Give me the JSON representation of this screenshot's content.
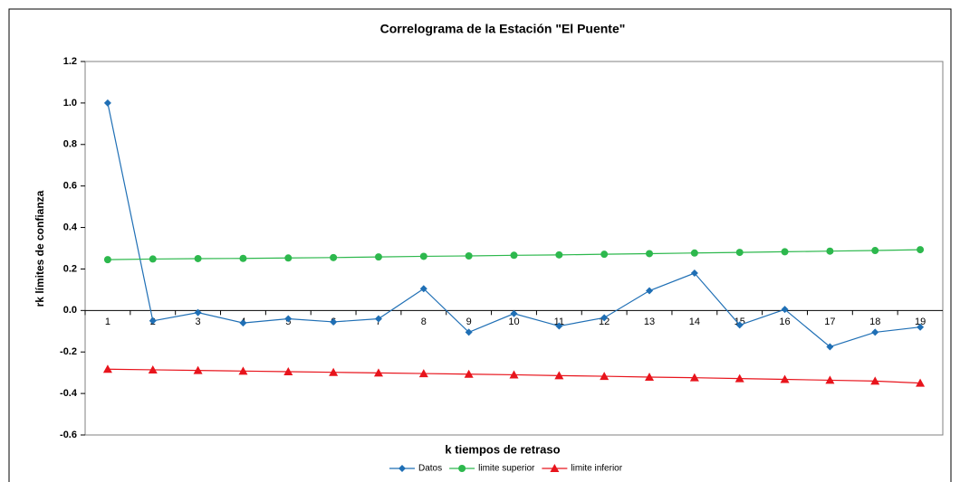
{
  "chart_data": {
    "type": "line",
    "title": "Correlograma de la Estación \"El Puente\"",
    "xlabel": "k tiempos de retraso",
    "ylabel": "rk límites de confianza",
    "categories": [
      1,
      2,
      3,
      4,
      5,
      6,
      7,
      8,
      9,
      10,
      11,
      12,
      13,
      14,
      15,
      16,
      17,
      18,
      19
    ],
    "series": [
      {
        "name": "Datos",
        "color": "#1f6fb5",
        "marker": "diamond",
        "values": [
          1.0,
          -0.05,
          -0.01,
          -0.06,
          -0.04,
          -0.055,
          -0.04,
          0.105,
          -0.105,
          -0.015,
          -0.075,
          -0.035,
          0.095,
          0.18,
          -0.07,
          0.005,
          -0.175,
          -0.105,
          -0.08
        ]
      },
      {
        "name": "limite superior",
        "color": "#2db84d",
        "marker": "circle",
        "values": [
          0.245,
          0.248,
          0.25,
          0.251,
          0.253,
          0.255,
          0.258,
          0.261,
          0.263,
          0.266,
          0.268,
          0.271,
          0.274,
          0.277,
          0.28,
          0.283,
          0.286,
          0.289,
          0.293
        ]
      },
      {
        "name": "limite inferior",
        "color": "#e8141c",
        "marker": "triangle",
        "values": [
          -0.283,
          -0.286,
          -0.289,
          -0.292,
          -0.295,
          -0.298,
          -0.301,
          -0.304,
          -0.307,
          -0.31,
          -0.314,
          -0.317,
          -0.321,
          -0.324,
          -0.328,
          -0.332,
          -0.336,
          -0.34,
          -0.35
        ]
      }
    ],
    "ylim": [
      -0.6,
      1.2
    ],
    "yticks": [
      -0.6,
      -0.4,
      -0.2,
      {
        "value": 0,
        "label": "0.0"
      },
      0.2,
      0.4,
      0.6,
      0.8,
      {
        "value": 1,
        "label": "1.0"
      },
      1.2
    ],
    "grid": false,
    "legend": "bottom"
  }
}
